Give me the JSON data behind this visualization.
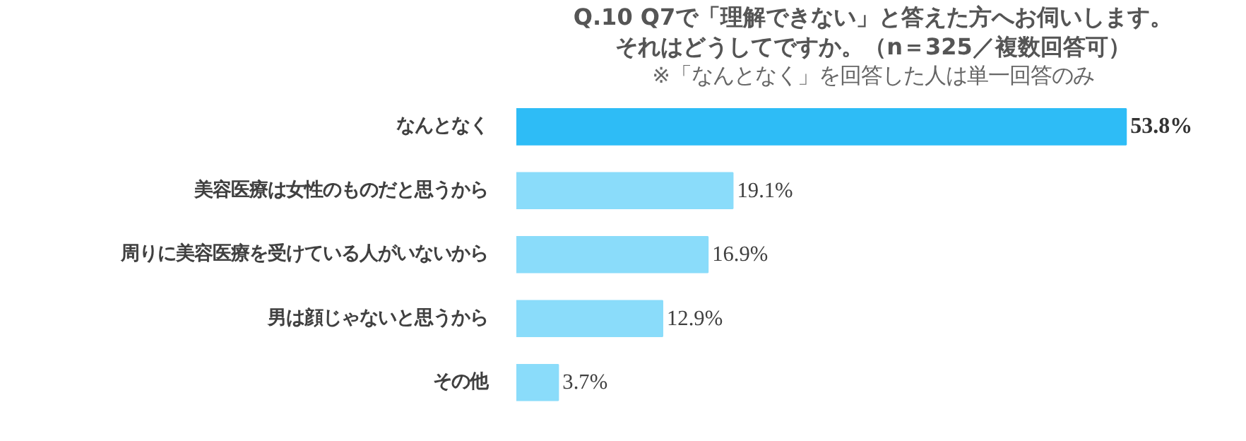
{
  "chart_data": {
    "type": "bar",
    "orientation": "horizontal",
    "title": "Q.10 Q7で「理解できない」と答えた方へお伺いします。",
    "subtitle": "それはどうしてですか。（n＝325／複数回答可）",
    "annotations": [
      "※「なんとなく」を回答した人は単一回答のみ"
    ],
    "categories": [
      "なんとなく",
      "美容医療は女性のものだと思うから",
      "周りに美容医療を受けている人がいないから",
      "男は顔じゃないと思うから",
      "その他"
    ],
    "values": [
      53.8,
      19.1,
      16.9,
      12.9,
      3.7
    ],
    "value_labels": [
      "53.8%",
      "19.1%",
      "16.9%",
      "12.9%",
      "3.7%"
    ],
    "colors": [
      "#2ebcf6",
      "#8adcfa",
      "#8adcfa",
      "#8adcfa",
      "#8adcfa"
    ],
    "grid": false
  }
}
